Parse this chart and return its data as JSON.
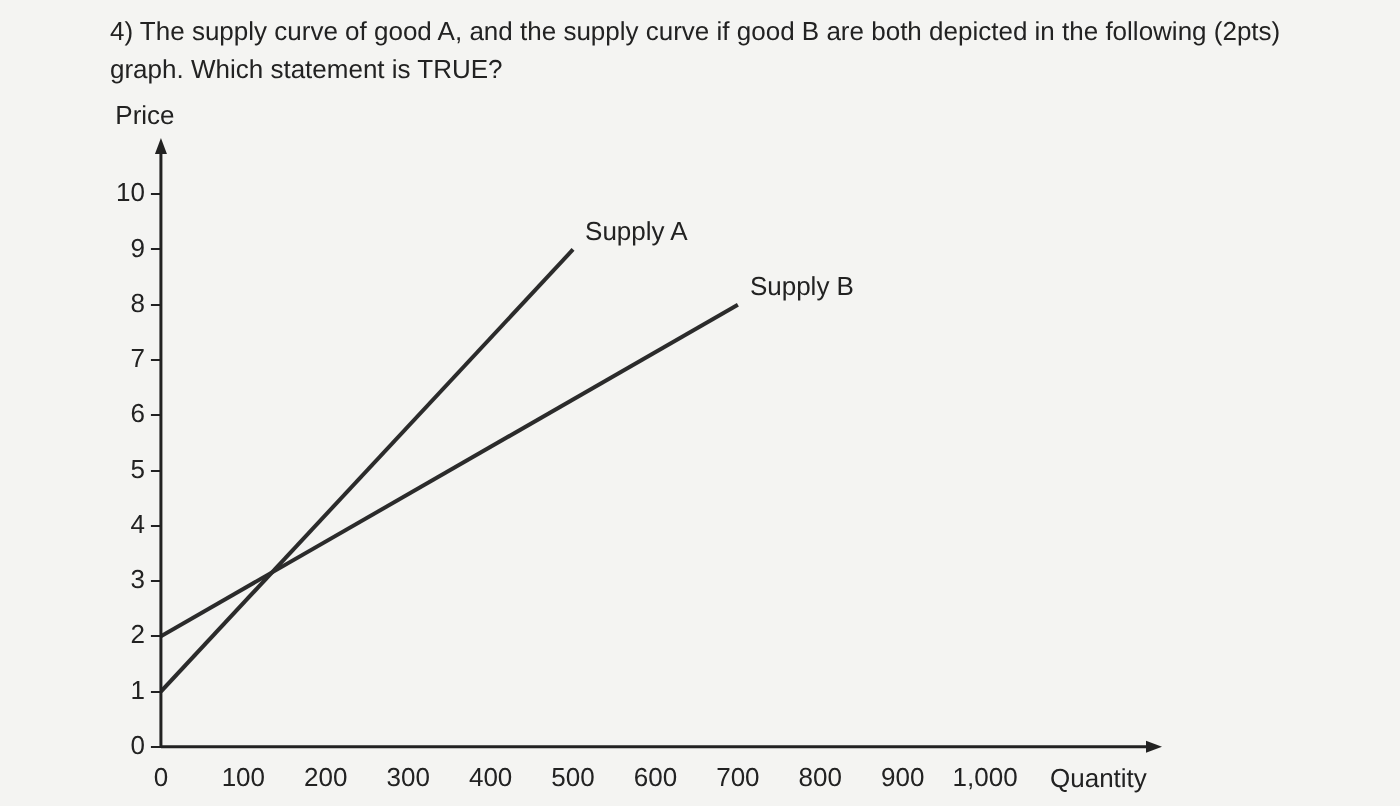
{
  "chart_data": {
    "type": "line",
    "title": "4) The supply curve of good A, and the supply curve if good B are both depicted in the following (2pts) graph. Which statement is TRUE?",
    "xlabel": "Quantity",
    "ylabel": "Price",
    "series": [
      {
        "name": "Supply A",
        "color": "#2b2b2b",
        "x": [
          0,
          500
        ],
        "values": [
          1,
          9
        ]
      },
      {
        "name": "Supply B",
        "color": "#2b2b2b",
        "x": [
          0,
          700
        ],
        "values": [
          2,
          8
        ]
      }
    ],
    "xlim": [
      0,
      1200
    ],
    "ylim": [
      0,
      10.8
    ],
    "xticks": [
      0,
      100,
      200,
      300,
      400,
      500,
      600,
      700,
      800,
      900,
      {
        "value": 1000,
        "label": "1,000"
      }
    ],
    "yticks": [
      0,
      1,
      2,
      3,
      4,
      5,
      6,
      7,
      8,
      9,
      10
    ],
    "grid": false,
    "legend": false,
    "marker": "none",
    "line_style": "solid"
  }
}
